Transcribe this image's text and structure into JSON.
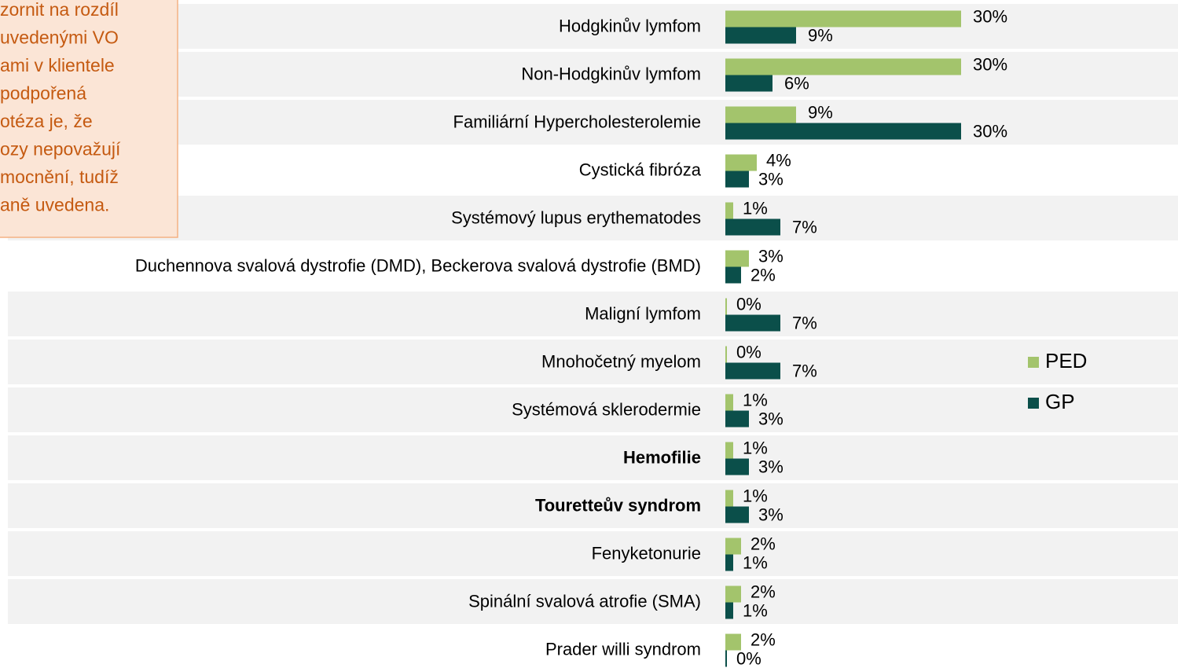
{
  "note": {
    "lines": [
      "zornit na rozdíl",
      "uvedenými VO",
      "ami v klientele",
      "podpořená",
      "otéza je, že",
      "ozy nepovažují",
      "mocnění, tudíž",
      "aně uvedena."
    ]
  },
  "chart_data": {
    "type": "bar",
    "categories": [
      "Hodgkinův lymfom",
      "Non-Hodgkinův lymfom",
      "Familiární Hypercholesterolemie",
      "Cystická fibróza",
      "Systémový lupus erythematodes",
      "Duchennova svalová dystrofie (DMD), Beckerova svalová dystrofie (BMD)",
      "Maligní lymfom",
      "Mnohočetný myelom",
      "Systémová sklerodermie",
      "Hemofilie",
      "Touretteův syndrom",
      "Fenyketonurie",
      "Spinální svalová atrofie (SMA)",
      "Prader willi syndrom"
    ],
    "bold": [
      false,
      false,
      false,
      false,
      false,
      false,
      false,
      false,
      false,
      true,
      true,
      false,
      false,
      false
    ],
    "series": [
      {
        "name": "PED",
        "color": "#a3c46c",
        "values": [
          30,
          30,
          9,
          4,
          1,
          3,
          0,
          0,
          1,
          1,
          1,
          2,
          2,
          2
        ],
        "value_labels": [
          "30%",
          "30%",
          "9%",
          "4%",
          "1%",
          "3%",
          "0%",
          "0%",
          "1%",
          "1%",
          "1%",
          "2%",
          "2%",
          "2%"
        ]
      },
      {
        "name": "GP",
        "color": "#0b4f4a",
        "values": [
          9,
          6,
          30,
          3,
          7,
          2,
          7,
          7,
          3,
          3,
          3,
          1,
          1,
          0
        ],
        "value_labels": [
          "9%",
          "6%",
          "30%",
          "3%",
          "7%",
          "2%",
          "7%",
          "7%",
          "3%",
          "3%",
          "3%",
          "1%",
          "1%",
          "0%"
        ]
      }
    ],
    "legend": "right"
  }
}
